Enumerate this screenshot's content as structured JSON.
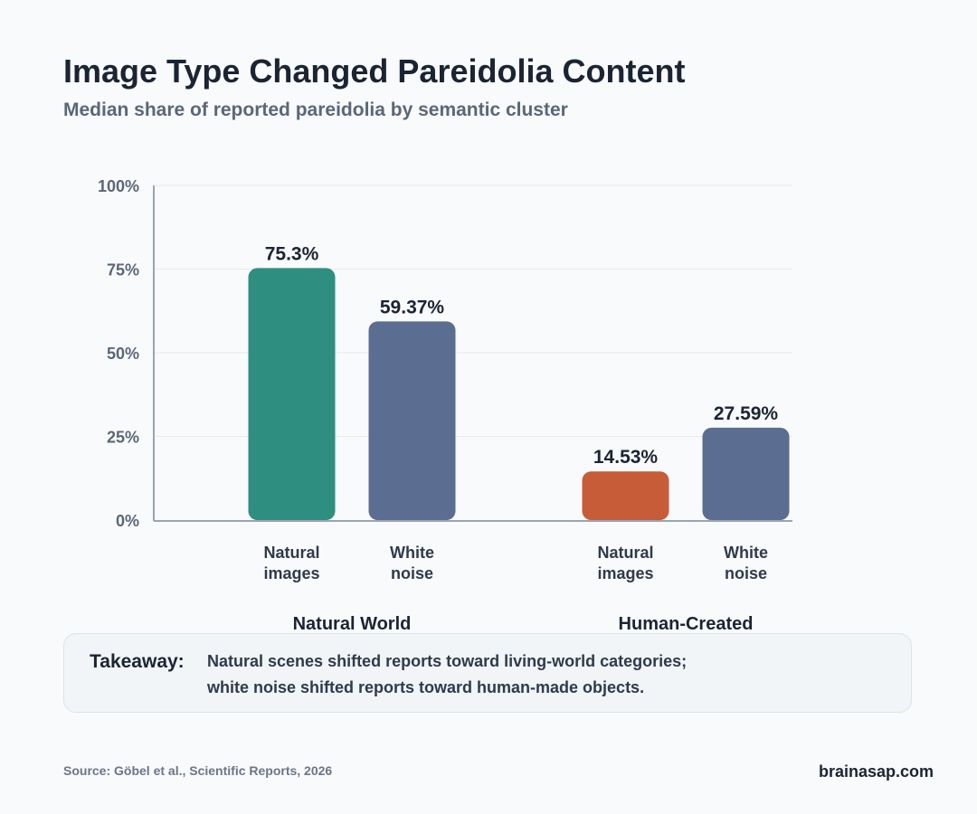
{
  "header": {
    "title": "Image Type Changed Pareidolia Content",
    "subtitle": "Median share of reported pareidolia by semantic cluster"
  },
  "chart_data": {
    "type": "bar",
    "title": "Image Type Changed Pareidolia Content",
    "subtitle": "Median share of reported pareidolia by semantic cluster",
    "ylim": [
      0,
      100
    ],
    "yticks": [
      0,
      25,
      50,
      75,
      100
    ],
    "ytick_labels": [
      "0%",
      "25%",
      "50%",
      "75%",
      "100%"
    ],
    "grid": true,
    "groups": [
      {
        "name": "Natural World",
        "bars": [
          {
            "label_lines": [
              "Natural",
              "images"
            ],
            "value": 75.3,
            "value_label": "75.3%",
            "color": "#2e8f80"
          },
          {
            "label_lines": [
              "White",
              "noise"
            ],
            "value": 59.37,
            "value_label": "59.37%",
            "color": "#5c6d92"
          }
        ]
      },
      {
        "name": "Human-Created",
        "bars": [
          {
            "label_lines": [
              "Natural",
              "images"
            ],
            "value": 14.53,
            "value_label": "14.53%",
            "color": "#c75c38"
          },
          {
            "label_lines": [
              "White",
              "noise"
            ],
            "value": 27.59,
            "value_label": "27.59%",
            "color": "#5c6d92"
          }
        ]
      }
    ]
  },
  "takeaway": {
    "label": "Takeaway:",
    "line1": "Natural scenes shifted reports toward living-world categories;",
    "line2": "white noise shifted reports toward human-made objects."
  },
  "footer": {
    "source": "Source: Göbel et al., Scientific Reports, 2026",
    "brand": "brainasap.com"
  }
}
